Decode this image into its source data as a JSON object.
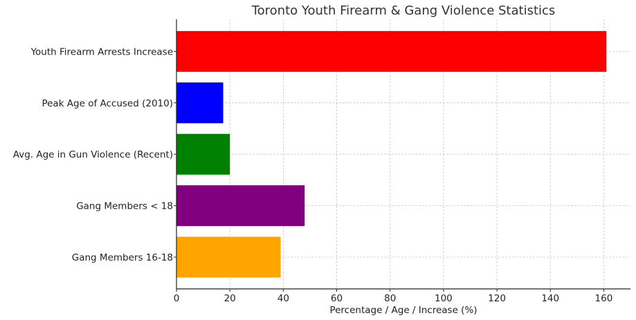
{
  "chart_data": {
    "type": "bar",
    "orientation": "horizontal",
    "title": "Toronto Youth Firearm & Gang Violence Statistics",
    "xlabel": "Percentage / Age / Increase (%)",
    "ylabel": "",
    "xlim": [
      0,
      170
    ],
    "xticks": [
      0,
      20,
      40,
      60,
      80,
      100,
      120,
      140,
      160
    ],
    "grid": true,
    "categories": [
      "Gang Members 16-18",
      "Gang Members < 18",
      "Avg. Age in Gun Violence (Recent)",
      "Peak Age of Accused (2010)",
      "Youth Firearm Arrests Increase"
    ],
    "values": [
      39,
      48,
      20,
      17.5,
      161
    ],
    "colors": [
      "#ffa500",
      "#800080",
      "#008000",
      "#0000ff",
      "#ff0000"
    ]
  }
}
